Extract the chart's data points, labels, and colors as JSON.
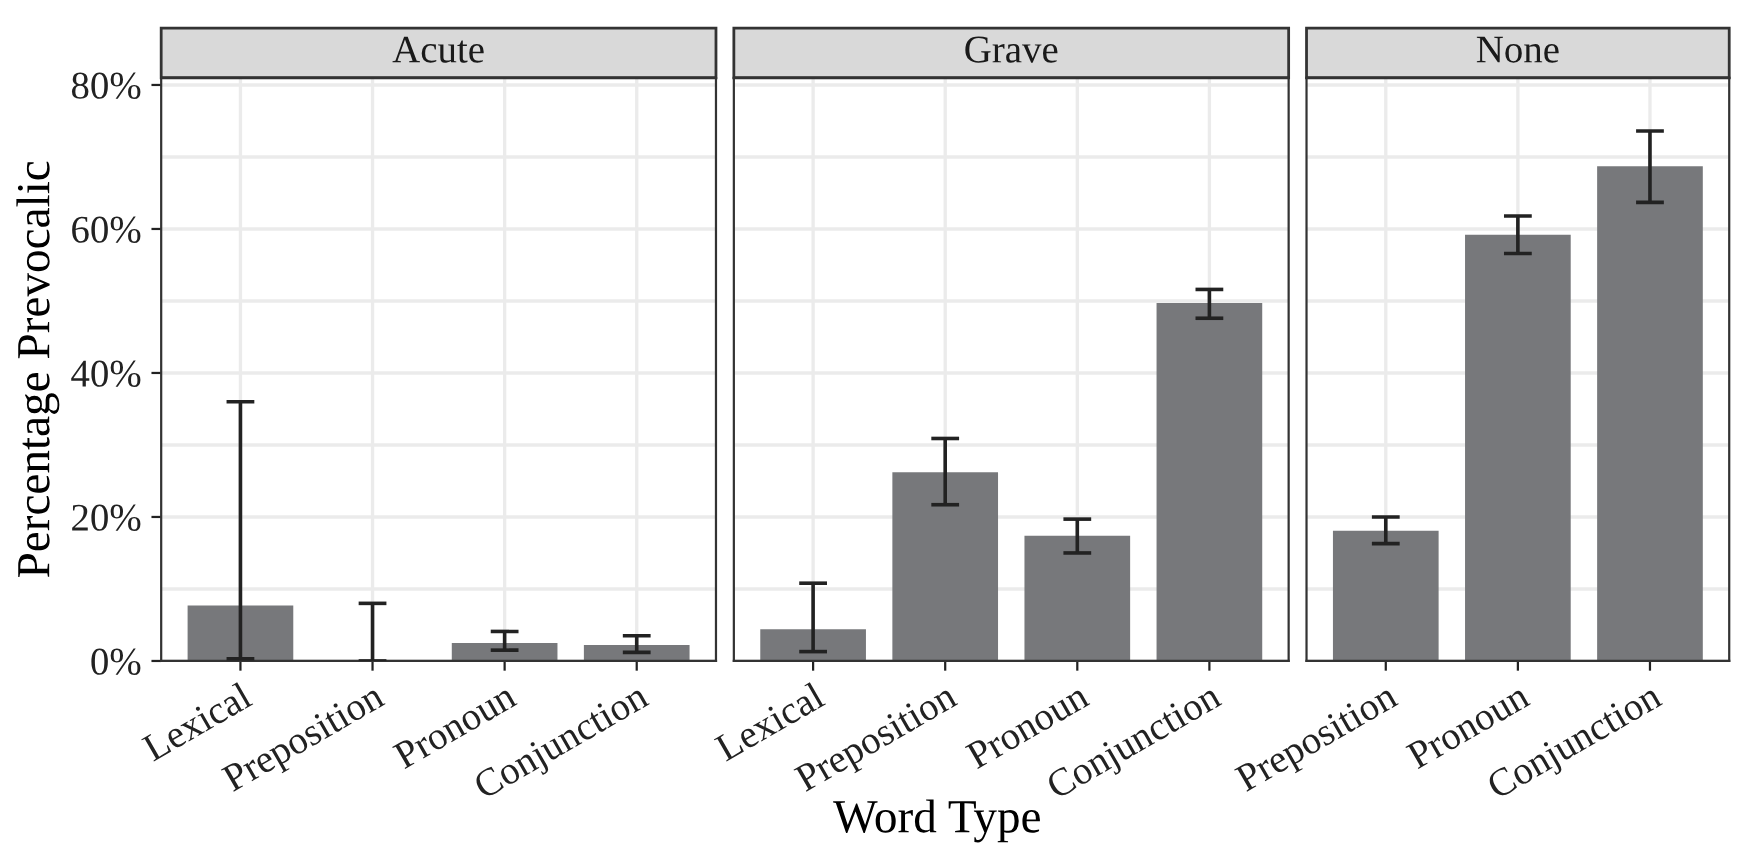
{
  "chart_data": [
    {
      "type": "bar",
      "title": "Acute",
      "ylabel": "Percentage Prevocalic",
      "categories": [
        "Lexical",
        "Preposition",
        "Pronoun",
        "Conjunction"
      ],
      "values": [
        7.7,
        0,
        2.5,
        2.2
      ],
      "errors": [
        [
          0.3,
          36
        ],
        [
          0,
          8
        ],
        [
          1.5,
          4.1
        ],
        [
          1.2,
          3.5
        ]
      ],
      "color": "#77787b",
      "ylim": [
        0,
        81
      ],
      "yticks": [
        {
          "value": 0,
          "label": "0%"
        },
        {
          "value": 10,
          "label": null
        },
        {
          "value": 20,
          "label": "20%"
        },
        {
          "value": 30,
          "label": null
        },
        {
          "value": 40,
          "label": "40%"
        },
        {
          "value": 50,
          "label": null
        },
        {
          "value": 60,
          "label": "60%"
        },
        {
          "value": 70,
          "label": null
        },
        {
          "value": 80,
          "label": "80%"
        }
      ],
      "grid": true
    },
    {
      "type": "bar",
      "title": "Grave",
      "xlabel": "Word Type",
      "categories": [
        "Lexical",
        "Preposition",
        "Pronoun",
        "Conjunction"
      ],
      "values": [
        4.4,
        26.2,
        17.4,
        49.7
      ],
      "errors": [
        [
          1.3,
          10.8
        ],
        [
          21.7,
          30.9
        ],
        [
          15,
          19.7
        ],
        [
          47.6,
          51.6
        ]
      ],
      "color": "#77787b",
      "ylim": [
        0,
        81
      ],
      "yticks": [
        {
          "value": 0,
          "label": null
        },
        {
          "value": 10,
          "label": null
        },
        {
          "value": 20,
          "label": null
        },
        {
          "value": 30,
          "label": null
        },
        {
          "value": 40,
          "label": null
        },
        {
          "value": 50,
          "label": null
        },
        {
          "value": 60,
          "label": null
        },
        {
          "value": 70,
          "label": null
        },
        {
          "value": 80,
          "label": null
        }
      ],
      "grid": true,
      "tick_labels": "x"
    },
    {
      "type": "bar",
      "title": "None",
      "categories": [
        "Preposition",
        "Pronoun",
        "Conjunction"
      ],
      "values": [
        18.1,
        59.2,
        68.7
      ],
      "errors": [
        [
          16.3,
          20
        ],
        [
          56.6,
          61.8
        ],
        [
          63.7,
          73.6
        ]
      ],
      "color": "#77787b",
      "ylim": [
        0,
        81
      ],
      "yticks": [
        {
          "value": 0,
          "label": null
        },
        {
          "value": 10,
          "label": null
        },
        {
          "value": 20,
          "label": null
        },
        {
          "value": 30,
          "label": null
        },
        {
          "value": 40,
          "label": null
        },
        {
          "value": 50,
          "label": null
        },
        {
          "value": 60,
          "label": null
        },
        {
          "value": 70,
          "label": null
        },
        {
          "value": 80,
          "label": null
        }
      ],
      "grid": true,
      "tick_labels": "x"
    }
  ]
}
